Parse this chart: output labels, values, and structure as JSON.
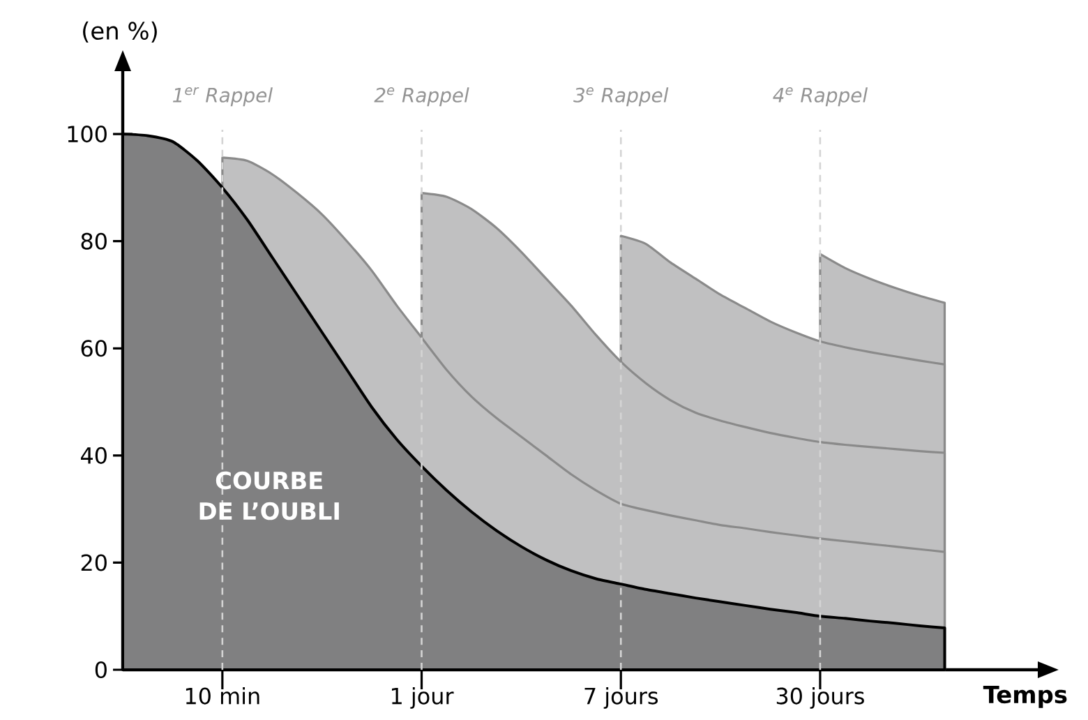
{
  "chart_data": {
    "type": "area",
    "ylabel": "(en %)",
    "xlabel": "Temps",
    "annotations": [
      "COURBE DE L’OUBLI"
    ],
    "categories": [
      null,
      null,
      null,
      null,
      "10 min",
      null,
      null,
      null,
      null,
      null,
      null,
      null,
      "1 jour",
      null,
      null,
      null,
      null,
      null,
      null,
      null,
      "7 jours",
      null,
      null,
      null,
      null,
      null,
      null,
      null,
      "30 jours",
      null,
      null,
      null,
      null,
      null
    ],
    "ylim": [
      0,
      112
    ],
    "yticks": [
      0,
      20,
      40,
      60,
      80,
      100
    ],
    "grid": false,
    "series": [
      {
        "color": "#808081",
        "values": [
          100,
          99.7,
          98.6,
          95,
          90,
          84,
          77,
          70,
          63,
          56,
          49,
          43,
          38,
          33.5,
          29.5,
          26,
          23,
          20.5,
          18.5,
          17,
          16,
          15,
          14.2,
          13.4,
          12.7,
          12,
          11.3,
          10.7,
          10,
          9.6,
          9.1,
          8.7,
          8.2,
          7.8
        ]
      },
      {
        "color": "#c0c0c1",
        "values": [
          null,
          null,
          null,
          null,
          95.6,
          95,
          92.5,
          89,
          85,
          80,
          74.5,
          68,
          62,
          56,
          51,
          47,
          43.5,
          40,
          36.5,
          33.5,
          31,
          29.8,
          28.8,
          27.9,
          27,
          26.4,
          25.7,
          25.1,
          24.5,
          24,
          23.5,
          23,
          22.5,
          22
        ]
      },
      {
        "color": "#c0c0c1",
        "values": [
          null,
          null,
          null,
          null,
          null,
          null,
          null,
          null,
          null,
          null,
          null,
          null,
          89,
          88.3,
          86,
          82.5,
          78,
          73,
          68,
          62.5,
          57.5,
          53.5,
          50.3,
          48,
          46.5,
          45.3,
          44.2,
          43.3,
          42.5,
          42,
          41.6,
          41.2,
          40.8,
          40.5
        ]
      },
      {
        "color": "#c0c0c1",
        "values": [
          null,
          null,
          null,
          null,
          null,
          null,
          null,
          null,
          null,
          null,
          null,
          null,
          null,
          null,
          null,
          null,
          null,
          null,
          null,
          null,
          81,
          79.5,
          76,
          73,
          70,
          67.5,
          65,
          63,
          61.3,
          60.2,
          59.3,
          58.5,
          57.7,
          57
        ]
      },
      {
        "color": "#c0c0c1",
        "values": [
          null,
          null,
          null,
          null,
          null,
          null,
          null,
          null,
          null,
          null,
          null,
          null,
          null,
          null,
          null,
          null,
          null,
          null,
          null,
          null,
          null,
          null,
          null,
          null,
          null,
          null,
          null,
          null,
          77.6,
          75,
          73,
          71.3,
          69.8,
          68.5
        ]
      }
    ],
    "ref_lines": [
      {
        "axis": "x",
        "value": "10 min",
        "label": "1$^{er}$ Rappel",
        "color": "#d4d4d4",
        "line_style": "dashed"
      },
      {
        "axis": "x",
        "value": "1 jour",
        "label": "2$^{e}$ Rappel",
        "color": "#d4d4d4",
        "line_style": "dashed"
      },
      {
        "axis": "x",
        "value": "7 jours",
        "label": "3$^{e}$ Rappel",
        "color": "#d4d4d4",
        "line_style": "dashed"
      },
      {
        "axis": "x",
        "value": "30 jours",
        "label": "4$^{e}$ Rappel",
        "color": "#d4d4d4",
        "line_style": "dashed"
      }
    ]
  }
}
